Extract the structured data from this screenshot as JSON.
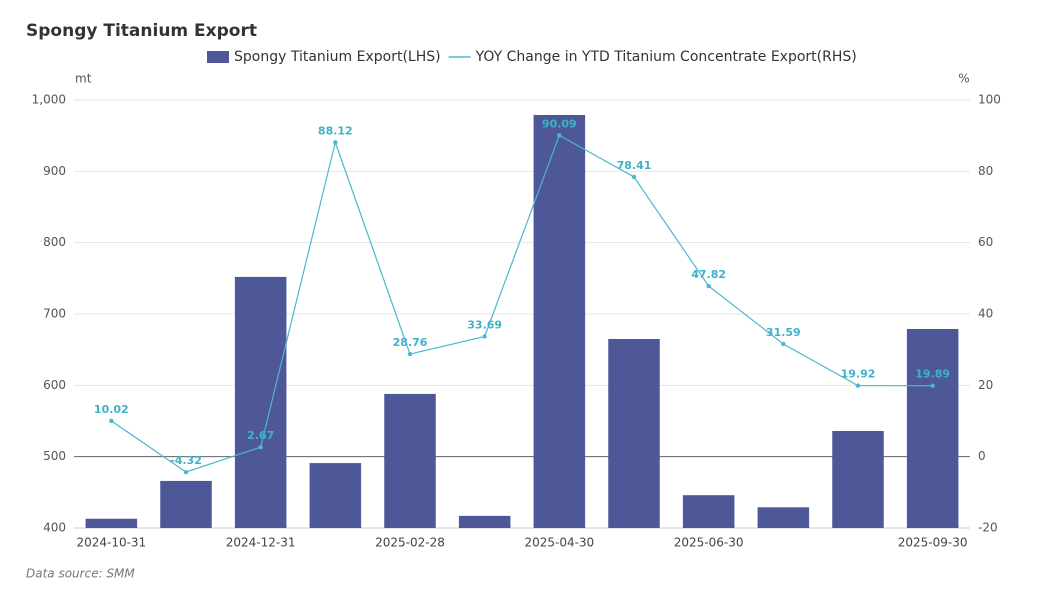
{
  "chart_data": {
    "type": "bar-line",
    "title": "Spongy Titanium Export",
    "source": "Data source:  SMM",
    "y_unit": "mt",
    "y2_unit": "%",
    "categories": [
      "2024-10-31",
      null,
      "2024-12-31",
      null,
      "2025-02-28",
      null,
      "2025-04-30",
      null,
      "2025-06-30",
      null,
      null,
      "2025-09-30"
    ],
    "series": [
      {
        "name": "Spongy Titanium Export(LHS)",
        "type": "bar",
        "color": "#4e5899",
        "values": [
          413,
          466,
          752,
          491,
          588,
          417,
          979,
          665,
          446,
          429,
          536,
          679
        ]
      },
      {
        "name": "YOY Change in YTD Titanium Concentrate Export(RHS)",
        "type": "line",
        "axis": "y2",
        "color": "#4ab8cf",
        "values": [
          10.02,
          -4.32,
          2.67,
          88.12,
          28.76,
          33.69,
          90.09,
          78.41,
          47.82,
          31.59,
          19.92,
          19.89
        ]
      }
    ],
    "ylim": [
      400,
      1000
    ],
    "yticks": [
      400,
      500,
      600,
      700,
      800,
      900,
      {
        "value": 1000,
        "label": "1,000"
      }
    ],
    "y2lim": [
      -20,
      100
    ],
    "y2ticks": [
      -20,
      0,
      20,
      40,
      60,
      80,
      100
    ],
    "grid": true,
    "legend": "top"
  }
}
